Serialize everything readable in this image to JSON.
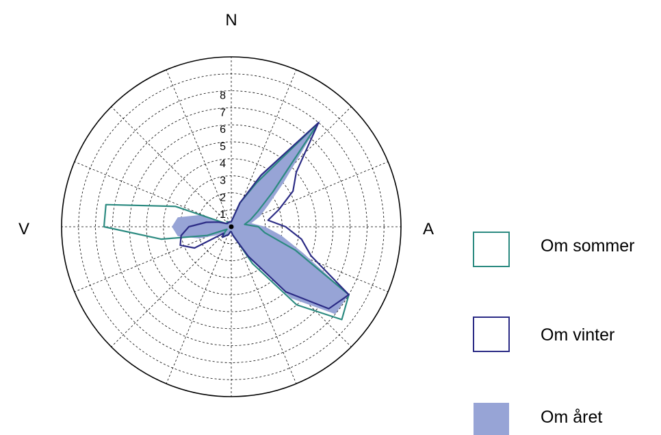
{
  "chart_data": {
    "type": "radar",
    "compass": {
      "north": "N",
      "east": "A",
      "west": "V"
    },
    "rings": [
      1,
      2,
      3,
      4,
      5,
      6,
      7,
      8
    ],
    "rmax": 10,
    "spoke_step_deg": 22.5,
    "grid": true,
    "legend_position": "right",
    "colors": {
      "sommer": "#2b8a80",
      "vinter": "#2b2b85",
      "aret": "#97a4d6"
    },
    "angles_deg": [
      0,
      10,
      20,
      30,
      40,
      50,
      60,
      70,
      80,
      90,
      100,
      110,
      120,
      130,
      140,
      150,
      160,
      170,
      180,
      190,
      200,
      210,
      220,
      230,
      240,
      250,
      260,
      270,
      280,
      290,
      300,
      310,
      320,
      330,
      340,
      350
    ],
    "series": [
      {
        "name": "Om sommer",
        "style": "outline",
        "values": [
          0.3,
          0.5,
          1.5,
          3.0,
          8.0,
          3.2,
          1.8,
          1.2,
          0.8,
          1.6,
          2.0,
          4.0,
          8.0,
          8.5,
          6.0,
          2.5,
          0.8,
          0.5,
          0.3,
          0.3,
          0.5,
          0.6,
          0.8,
          0.5,
          0.3,
          1.5,
          4.2,
          7.5,
          7.5,
          3.5,
          0.4,
          0.3,
          0.4,
          0.3,
          0.3,
          0.3
        ]
      },
      {
        "name": "Om vinter",
        "style": "outline",
        "values": [
          0.3,
          0.5,
          1.5,
          3.5,
          8.0,
          5.0,
          4.2,
          3.0,
          2.2,
          3.2,
          4.2,
          5.0,
          8.0,
          7.5,
          5.0,
          2.0,
          0.8,
          0.5,
          0.3,
          0.3,
          0.5,
          0.6,
          0.8,
          0.6,
          2.5,
          3.2,
          3.0,
          2.5,
          1.5,
          0.8,
          0.4,
          0.3,
          0.3,
          0.3,
          0.3,
          0.3
        ]
      },
      {
        "name": "Om året",
        "style": "filled",
        "values": [
          0.3,
          0.5,
          1.5,
          3.5,
          8.2,
          4.0,
          2.5,
          1.8,
          1.2,
          2.0,
          3.0,
          4.5,
          8.0,
          8.0,
          5.5,
          2.2,
          0.8,
          0.5,
          0.3,
          0.3,
          0.5,
          0.6,
          0.8,
          0.5,
          1.0,
          2.0,
          3.2,
          3.5,
          3.2,
          2.0,
          0.4,
          0.3,
          0.3,
          0.3,
          0.3,
          0.3
        ]
      }
    ]
  }
}
